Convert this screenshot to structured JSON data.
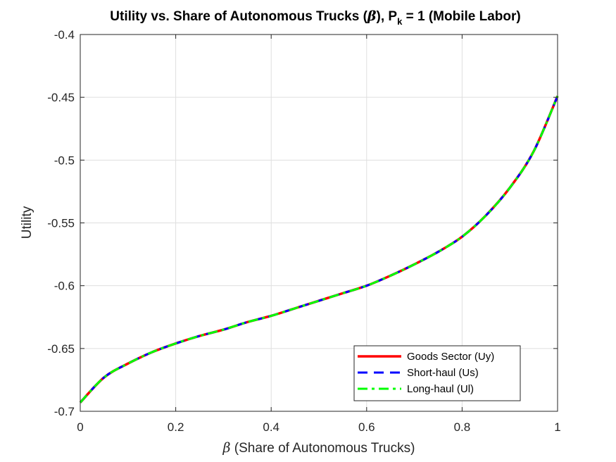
{
  "chart_data": {
    "type": "line",
    "title_main": "Utility vs. Share of Autonomous Trucks (",
    "title_sym": "β",
    "title_mid": "), P",
    "title_sub": "k",
    "title_end": " = 1 (Mobile Labor)",
    "xlabel_sym": "β",
    "xlabel_text": " (Share of Autonomous Trucks)",
    "ylabel": "Utility",
    "xlim": [
      0,
      1
    ],
    "ylim": [
      -0.7,
      -0.4
    ],
    "xticks": [
      0,
      0.2,
      0.4,
      0.6,
      0.8,
      1
    ],
    "xtick_labels": [
      "0",
      "0.2",
      "0.4",
      "0.6",
      "0.8",
      "1"
    ],
    "yticks": [
      -0.7,
      -0.65,
      -0.6,
      -0.55,
      -0.5,
      -0.45,
      -0.4
    ],
    "ytick_labels": [
      "-0.7",
      "-0.65",
      "-0.6",
      "-0.55",
      "-0.5",
      "-0.45",
      "-0.4"
    ],
    "grid": true,
    "legend_position": "bottom-right",
    "x": [
      0,
      0.05,
      0.1,
      0.15,
      0.2,
      0.25,
      0.3,
      0.35,
      0.4,
      0.45,
      0.5,
      0.55,
      0.6,
      0.65,
      0.7,
      0.75,
      0.8,
      0.85,
      0.9,
      0.95,
      1.0
    ],
    "series": [
      {
        "name": "Goods Sector (Uy)",
        "color": "#ff0000",
        "style": "solid",
        "values": [
          -0.693,
          -0.673,
          -0.662,
          -0.653,
          -0.646,
          -0.64,
          -0.635,
          -0.629,
          -0.624,
          -0.618,
          -0.612,
          -0.606,
          -0.6,
          -0.592,
          -0.583,
          -0.573,
          -0.561,
          -0.544,
          -0.522,
          -0.493,
          -0.449
        ]
      },
      {
        "name": "Short-haul (Us)",
        "color": "#0000ff",
        "style": "dashed",
        "values": [
          -0.693,
          -0.673,
          -0.662,
          -0.653,
          -0.646,
          -0.64,
          -0.635,
          -0.629,
          -0.624,
          -0.618,
          -0.612,
          -0.606,
          -0.6,
          -0.592,
          -0.583,
          -0.573,
          -0.561,
          -0.544,
          -0.522,
          -0.493,
          -0.449
        ]
      },
      {
        "name": "Long-haul (Ul)",
        "color": "#00ff00",
        "style": "dashdot",
        "values": [
          -0.693,
          -0.673,
          -0.662,
          -0.653,
          -0.646,
          -0.64,
          -0.635,
          -0.629,
          -0.624,
          -0.618,
          -0.612,
          -0.606,
          -0.6,
          -0.592,
          -0.583,
          -0.573,
          -0.561,
          -0.544,
          -0.522,
          -0.493,
          -0.449
        ]
      }
    ]
  }
}
